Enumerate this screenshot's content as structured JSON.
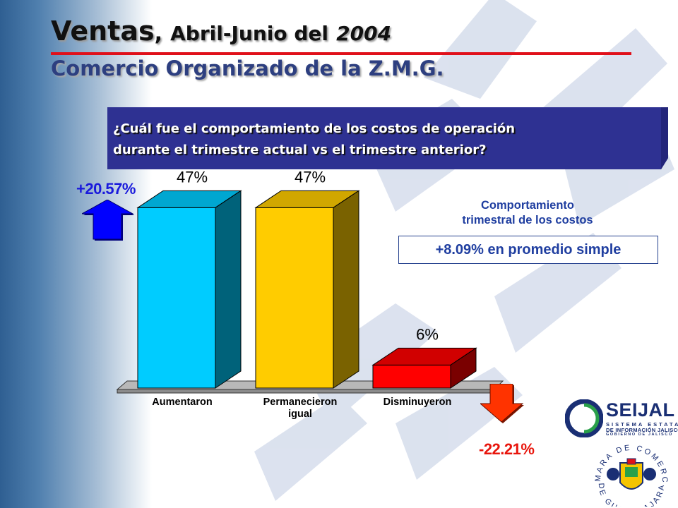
{
  "header": {
    "title_main": "Ventas",
    "title_sep": ",",
    "title_period": "Abril-Junio del",
    "title_year": "2004",
    "subtitle": "Comercio Organizado de la Z.M.G."
  },
  "question": {
    "line1": "¿Cuál fue el comportamiento de los costos de operación",
    "line2": "durante el trimestre actual vs el trimestre anterior?"
  },
  "indicators": {
    "up_pct": "+20.57%",
    "down_pct": "-22.21%",
    "up_color": "#0000ff",
    "down_color": "#ff3300"
  },
  "side_note": {
    "caption_line1": "Comportamiento",
    "caption_line2": "trimestral de los costos",
    "average": "+8.09% en promedio simple"
  },
  "logos": {
    "seijal_name": "SEIJAL",
    "seijal_line1": "SISTEMA ESTATAL",
    "seijal_line2": "DE INFORMACIÓN JALISCO",
    "seijal_line3": "GOBIERNO DE JALISCO",
    "chamber_top": "CAMARA DE COMERCIO",
    "chamber_bottom": "DE GUADALAJARA"
  },
  "chart_data": {
    "type": "bar",
    "categories": [
      [
        "Aumentaron"
      ],
      [
        "Permanecieron",
        "igual"
      ],
      [
        "Disminuyeron"
      ]
    ],
    "values": [
      47,
      47,
      6
    ],
    "value_labels": [
      "47%",
      "47%",
      "6%"
    ],
    "colors": [
      "#00ccff",
      "#ffcc00",
      "#ff0000"
    ],
    "ylim": [
      0,
      50
    ],
    "grid": false,
    "legend": "none",
    "style": "3d"
  }
}
